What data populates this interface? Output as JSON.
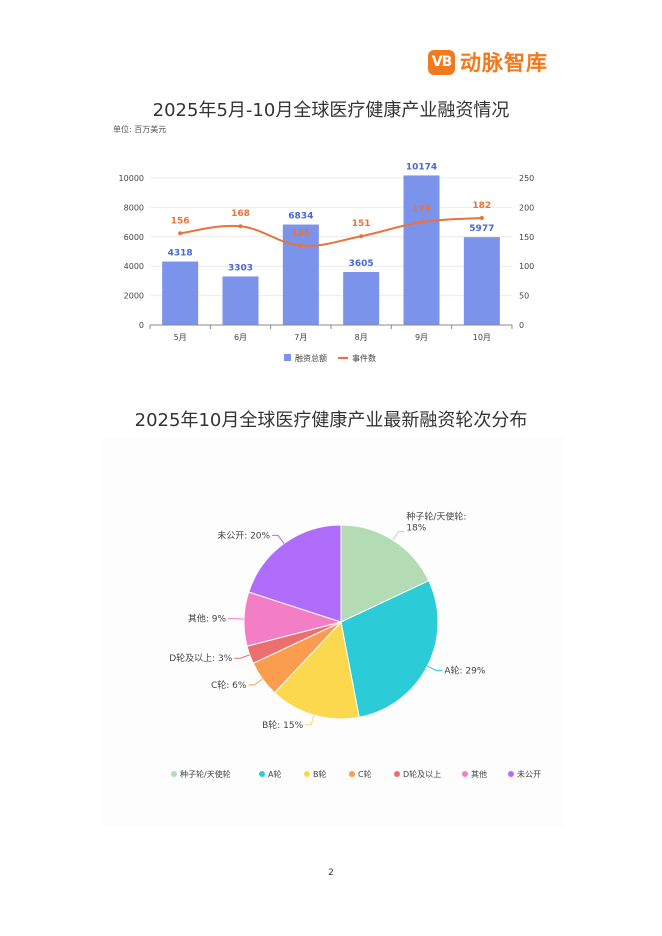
{
  "logo": {
    "mark": "VB",
    "text": "动脉智库"
  },
  "page_number": "2",
  "colors": {
    "bar": "#7b93ea",
    "line": "#e8743b",
    "grid": "#ececec",
    "pie": [
      "#b3dbb4",
      "#2bcbd8",
      "#fcd84e",
      "#fb9d4f",
      "#ec6f6f",
      "#f47ec5",
      "#b06cfa"
    ]
  },
  "chart_data": [
    {
      "type": "bar",
      "title": "2025年5月-10月全球医疗健康产业融资情况",
      "unit_note": "单位: 百万美元",
      "categories": [
        "5月",
        "6月",
        "7月",
        "8月",
        "9月",
        "10月"
      ],
      "series": [
        {
          "name": "融资总额",
          "type": "bar",
          "axis": "left",
          "values": [
            4318,
            3303,
            6834,
            3605,
            10174,
            5977
          ]
        },
        {
          "name": "事件数",
          "type": "line",
          "axis": "right",
          "values": [
            156,
            168,
            135,
            151,
            175,
            182
          ]
        }
      ],
      "ylim_left": [
        0,
        10000
      ],
      "yticks_left": [
        "0",
        "2000",
        "4000",
        "6000",
        "8000",
        "10000"
      ],
      "ylim_right": [
        0,
        250
      ],
      "yticks_right": [
        "0",
        "50",
        "100",
        "150",
        "200",
        "250"
      ],
      "grid": true,
      "legend": "bottom"
    },
    {
      "type": "pie",
      "title": "2025年10月全球医疗健康产业最新融资轮次分布",
      "slices": [
        {
          "label": "种子轮/天使轮",
          "value": 18,
          "display": "种子轮/天使轮: 18%"
        },
        {
          "label": "A轮",
          "value": 29,
          "display": "A轮: 29%"
        },
        {
          "label": "B轮",
          "value": 15,
          "display": "B轮: 15%"
        },
        {
          "label": "C轮",
          "value": 6,
          "display": "C轮: 6%"
        },
        {
          "label": "D轮及以上",
          "value": 3,
          "display": "D轮及以上: 3%"
        },
        {
          "label": "其他",
          "value": 9,
          "display": "其他: 9%"
        },
        {
          "label": "未公开",
          "value": 20,
          "display": "未公开: 20%"
        }
      ],
      "legend": "bottom"
    }
  ]
}
